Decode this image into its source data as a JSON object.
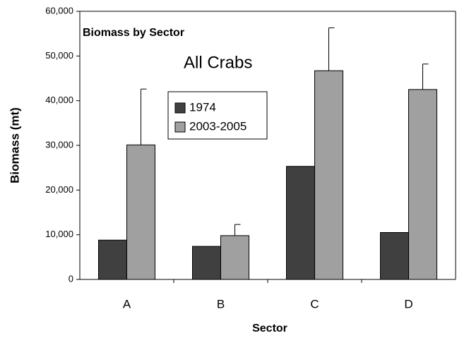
{
  "chart_data": {
    "type": "bar",
    "title": "Biomass by Sector",
    "subtitle": "All Crabs",
    "x_label": "Sector",
    "y_label": "Biomass (mt)",
    "categories": [
      "A",
      "B",
      "C",
      "D"
    ],
    "series": [
      {
        "name": "1974",
        "color": "#404040",
        "values": [
          8800,
          7400,
          25300,
          10500
        ]
      },
      {
        "name": "2003-2005",
        "color": "#a0a0a0",
        "values": [
          30100,
          9800,
          46700,
          42500
        ],
        "errors": [
          12500,
          2500,
          9600,
          5700
        ]
      }
    ],
    "ylim": [
      0,
      60000
    ],
    "yticks": [
      0,
      {
        "value": 10000,
        "label": "10,000"
      },
      {
        "value": 20000,
        "label": "20,000"
      },
      {
        "value": 30000,
        "label": "30,000"
      },
      {
        "value": 40000,
        "label": "40,000"
      },
      {
        "value": 50000,
        "label": "50,000"
      },
      {
        "value": 60000,
        "label": "60,000"
      }
    ],
    "grid": false
  }
}
